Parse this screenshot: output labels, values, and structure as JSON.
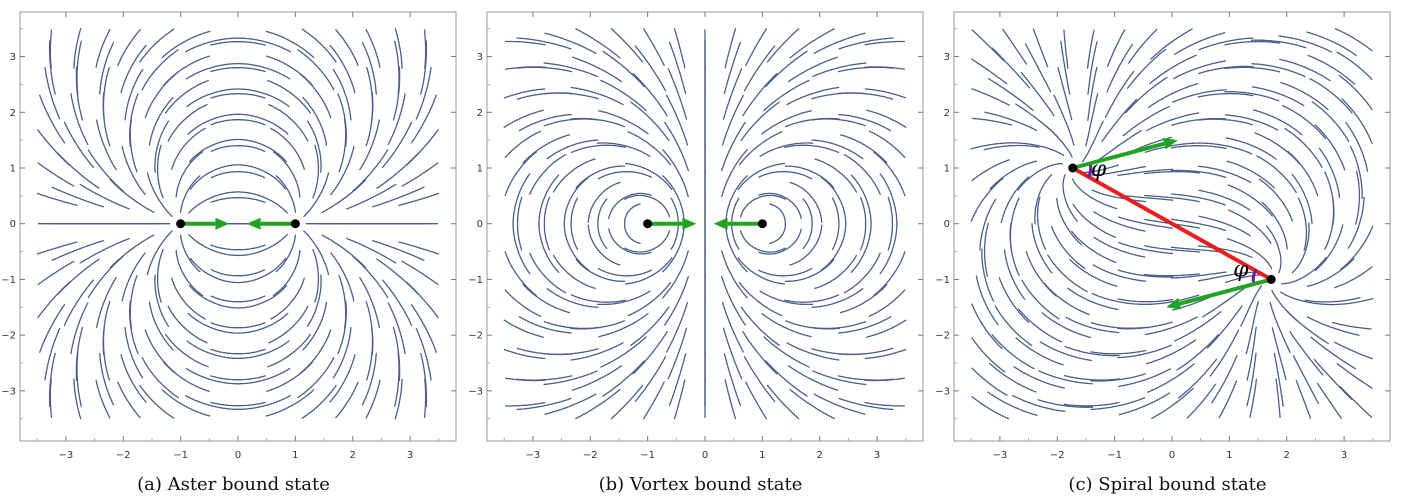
{
  "chart_data": [
    {
      "type": "streamplot",
      "title": "",
      "caption": "(a) Aster bound state",
      "xlim": [
        -3.8,
        3.8
      ],
      "ylim": [
        -3.9,
        3.8
      ],
      "xticks": [
        -3,
        -2,
        -1,
        0,
        1,
        2,
        3
      ],
      "yticks": [
        -3,
        -2,
        -1,
        0,
        1,
        2,
        3
      ],
      "field": "aster",
      "defects": [
        {
          "x": -1,
          "y": 0
        },
        {
          "x": 1,
          "y": 0
        }
      ],
      "arrows": [
        {
          "from": [
            -1,
            0
          ],
          "to": [
            -0.15,
            0
          ]
        },
        {
          "from": [
            1,
            0
          ],
          "to": [
            0.15,
            0
          ]
        }
      ],
      "colors": {
        "lines": "#4a5f8c",
        "arrow": "#22a422",
        "connector": "#ee1c1c",
        "angle": "#6a1b9a",
        "dot": "#000000"
      }
    },
    {
      "type": "streamplot",
      "title": "",
      "caption": "(b) Vortex bound state",
      "xlim": [
        -3.8,
        3.8
      ],
      "ylim": [
        -3.9,
        3.8
      ],
      "xticks": [
        -3,
        -2,
        -1,
        0,
        1,
        2,
        3
      ],
      "yticks": [
        -3,
        -2,
        -1,
        0,
        1,
        2,
        3
      ],
      "field": "vortex",
      "defects": [
        {
          "x": -1,
          "y": 0
        },
        {
          "x": 1,
          "y": 0
        }
      ],
      "arrows": [
        {
          "from": [
            -1,
            0
          ],
          "to": [
            -0.15,
            0
          ]
        },
        {
          "from": [
            1,
            0
          ],
          "to": [
            0.15,
            0
          ]
        }
      ],
      "colors": {
        "lines": "#4a5f8c",
        "arrow": "#22a422",
        "connector": "#ee1c1c",
        "angle": "#6a1b9a",
        "dot": "#000000"
      }
    },
    {
      "type": "streamplot",
      "title": "",
      "caption": "(c) Spiral bound state",
      "xlim": [
        -3.8,
        3.8
      ],
      "ylim": [
        -3.9,
        3.8
      ],
      "xticks": [
        -3,
        -2,
        -1,
        0,
        1,
        2,
        3
      ],
      "yticks": [
        -3,
        -2,
        -1,
        0,
        1,
        2,
        3
      ],
      "field": "spiral",
      "defects": [
        {
          "x": -1.73,
          "y": 1
        },
        {
          "x": 1.73,
          "y": -1
        }
      ],
      "arrows": [
        {
          "from": [
            -1.73,
            1
          ],
          "to": [
            0.1,
            1.5
          ]
        },
        {
          "from": [
            1.73,
            -1
          ],
          "to": [
            -0.1,
            -1.5
          ]
        }
      ],
      "connector": {
        "from": [
          -1.73,
          1
        ],
        "to": [
          1.73,
          -1
        ]
      },
      "angle_labels": [
        {
          "text": "φ",
          "at": [
            -1.28,
            0.86
          ]
        },
        {
          "text": "φ",
          "at": [
            1.2,
            -0.95
          ]
        }
      ],
      "colors": {
        "lines": "#4a5f8c",
        "arrow": "#22a422",
        "connector": "#ee1c1c",
        "angle": "#6a1b9a",
        "dot": "#000000"
      }
    }
  ]
}
